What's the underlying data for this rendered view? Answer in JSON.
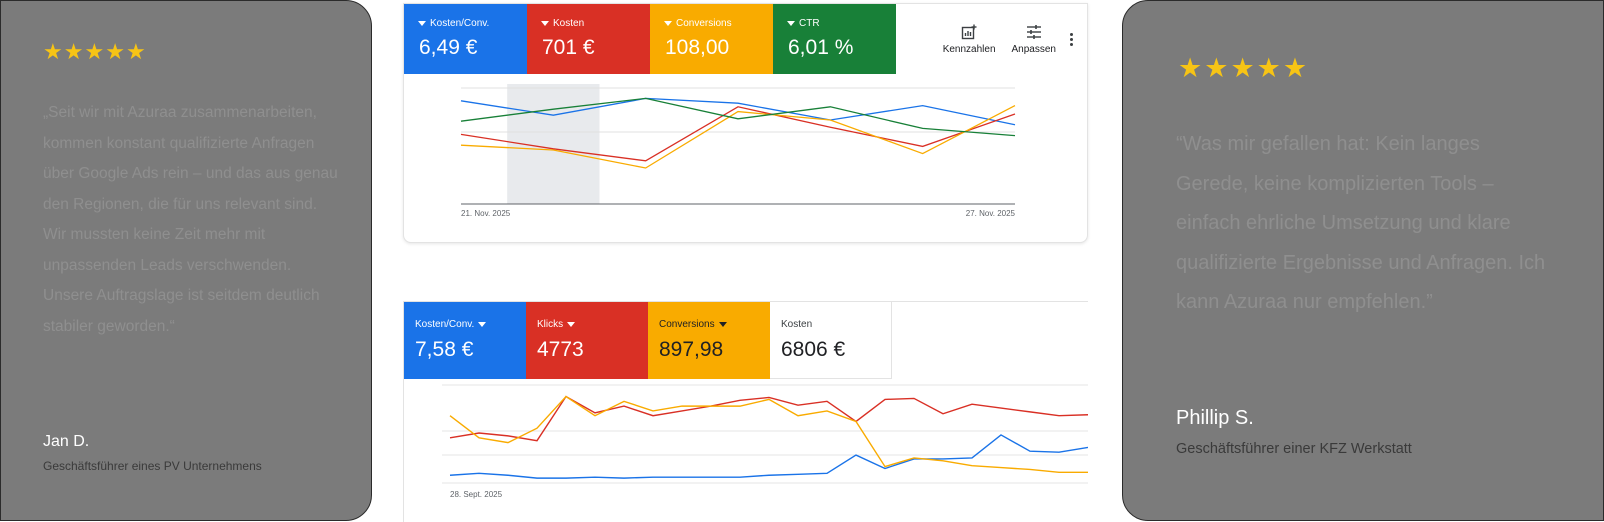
{
  "testimonial_left": {
    "stars": [
      "★",
      "★",
      "★",
      "★",
      "★"
    ],
    "quote": "„Seit wir mit Azuraa zusammenarbeiten, kommen konstant qualifizierte Anfragen über Google Ads rein – und das aus genau den Regionen, die für uns relevant sind. Wir mussten keine Zeit mehr mit unpassenden Leads verschwenden. Unsere Auftragslage ist seitdem deutlich stabiler geworden.“",
    "author": "Jan D.",
    "role": "Geschäftsführer eines PV Unternehmens"
  },
  "testimonial_right": {
    "stars": [
      "★",
      "★",
      "★",
      "★",
      "★"
    ],
    "quote": "“Was mir gefallen hat: Kein langes Gerede, keine komplizierten Tools – einfach ehrliche Umsetzung und klare qualifizierte Ergebnisse und Anfragen. Ich kann Azuraa nur empfehlen.”",
    "author": "Phillip S.",
    "role": "Geschäftsführer einer KFZ Werkstatt"
  },
  "panel1": {
    "metrics": [
      {
        "label": "Kosten/Conv.",
        "value": "6,49 €",
        "color": "#1a73e8"
      },
      {
        "label": "Kosten",
        "value": "701 €",
        "color": "#d93025"
      },
      {
        "label": "Conversions",
        "value": "108,00",
        "color": "#f9ab00"
      },
      {
        "label": "CTR",
        "value": "6,01 %",
        "color": "#188038"
      }
    ],
    "tools": {
      "kennzahlen_label": "Kennzahlen",
      "anpassen_label": "Anpassen"
    }
  },
  "panel2": {
    "metrics": [
      {
        "label": "Kosten/Conv.",
        "value": "7,58 €",
        "color": "#1a73e8"
      },
      {
        "label": "Klicks",
        "value": "4773",
        "color": "#d93025"
      },
      {
        "label": "Conversions",
        "value": "897,98",
        "color": "#f9ab00"
      },
      {
        "label": "Kosten",
        "value": "6806 €",
        "color": "#ffffff"
      }
    ]
  },
  "chart_data": [
    {
      "type": "line",
      "x": [
        "21. Nov. 2025",
        "22. Nov. 2025",
        "23. Nov. 2025",
        "24. Nov. 2025",
        "25. Nov. 2025",
        "26. Nov. 2025",
        "27. Nov. 2025"
      ],
      "x_tick_labels": [
        "21. Nov. 2025",
        "27. Nov. 2025"
      ],
      "highlighted_x": "22. Nov. 2025",
      "ylim": [
        0,
        10
      ],
      "series": [
        {
          "name": "Kosten/Conv.",
          "color": "#1a73e8",
          "values": [
            8.6,
            7.4,
            8.8,
            8.4,
            7.0,
            8.2,
            6.6
          ]
        },
        {
          "name": "Kosten",
          "color": "#d93025",
          "values": [
            5.8,
            4.6,
            3.6,
            8.1,
            6.4,
            4.8,
            7.5
          ]
        },
        {
          "name": "Conversions",
          "color": "#f9ab00",
          "values": [
            4.9,
            4.5,
            3.0,
            7.7,
            7.0,
            4.2,
            8.2
          ]
        },
        {
          "name": "CTR",
          "color": "#188038",
          "values": [
            6.9,
            7.9,
            8.8,
            7.1,
            8.1,
            6.3,
            5.7
          ]
        }
      ]
    },
    {
      "type": "line",
      "x_tick_labels": [
        "28. Sept. 2025"
      ],
      "ylim": [
        0,
        10
      ],
      "series": [
        {
          "name": "Kosten/Conv.",
          "color": "#1a73e8",
          "values": [
            0.6,
            0.8,
            0.6,
            0.3,
            0.3,
            0.4,
            0.3,
            0.4,
            0.4,
            0.4,
            0.4,
            0.6,
            0.7,
            0.8,
            2.7,
            1.3,
            2.3,
            2.3,
            2.4,
            4.8,
            3.1,
            3.0,
            3.5
          ]
        },
        {
          "name": "Klicks",
          "color": "#d93025",
          "values": [
            4.5,
            5.0,
            4.7,
            4.2,
            8.8,
            7.1,
            7.8,
            6.8,
            7.3,
            7.8,
            8.4,
            8.7,
            7.9,
            8.3,
            6.2,
            8.5,
            8.6,
            7.0,
            8.0,
            7.6,
            7.2,
            6.8,
            6.9
          ]
        },
        {
          "name": "Conversions",
          "color": "#f9ab00",
          "values": [
            6.8,
            4.5,
            4.0,
            5.5,
            8.8,
            6.8,
            8.3,
            7.3,
            7.8,
            7.8,
            7.8,
            8.5,
            6.8,
            7.3,
            6.2,
            1.5,
            2.4,
            2.1,
            1.6,
            1.4,
            1.2,
            0.9,
            0.9
          ]
        }
      ]
    }
  ]
}
